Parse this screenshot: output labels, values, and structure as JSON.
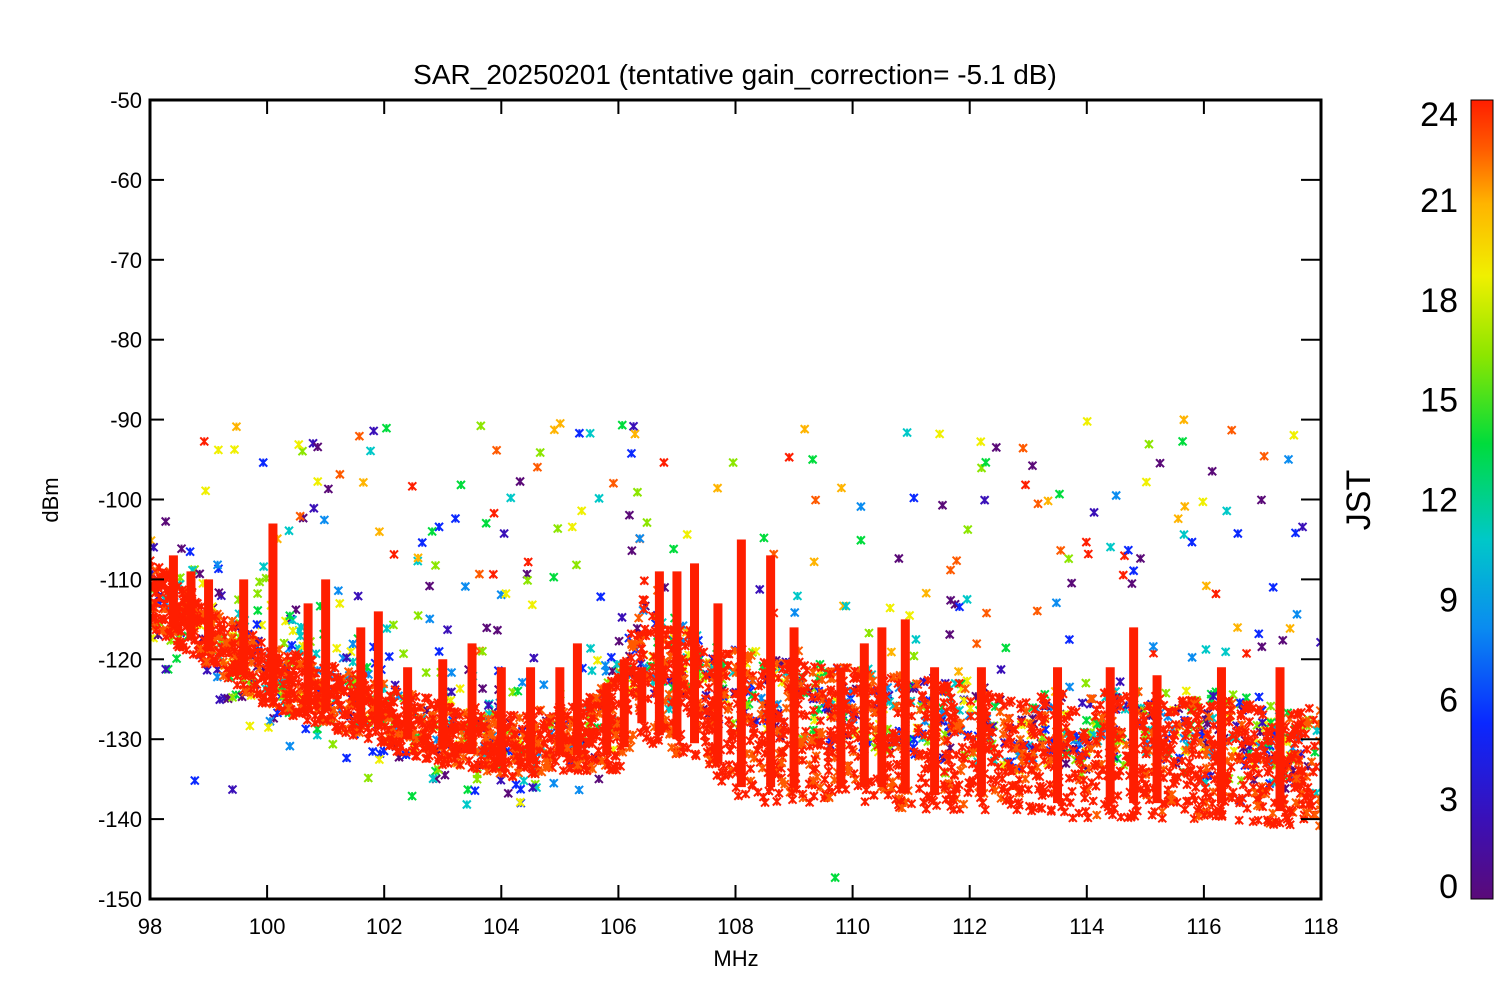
{
  "chart_data": {
    "type": "scatter",
    "title": "SAR_20250201 (tentative gain_correction= -5.1 dB)",
    "xlabel": "MHz",
    "ylabel": "dBm",
    "xlim": [
      98,
      118
    ],
    "ylim": [
      -150,
      -50
    ],
    "x_ticks": [
      "98",
      "100",
      "102",
      "104",
      "106",
      "108",
      "110",
      "112",
      "114",
      "116",
      "118"
    ],
    "y_ticks": [
      "-50",
      "-60",
      "-70",
      "-80",
      "-90",
      "-100",
      "-110",
      "-120",
      "-130",
      "-140",
      "-150"
    ],
    "grid": false,
    "marker": "asterisk",
    "color_scale": {
      "label": "JST",
      "range": [
        0,
        24
      ],
      "ticks": [
        "0",
        "3",
        "6",
        "9",
        "12",
        "15",
        "18",
        "21",
        "24"
      ],
      "colormap": "rainbow",
      "colors": [
        "#5a0a78",
        "#3a10b8",
        "#0a28ff",
        "#0a8cf0",
        "#00c8c8",
        "#00dc3c",
        "#8ce600",
        "#f0f000",
        "#ffb400",
        "#ff5a00",
        "#ff1e00"
      ]
    },
    "series": [
      {
        "description_hour_range": [
          21,
          24
        ],
        "x": [
          98,
          98.4,
          98.8,
          99.2,
          99.6,
          100,
          100.4,
          100.8,
          101.2,
          101.6,
          102,
          102.4,
          102.8,
          103.2,
          103.6,
          104,
          104.4,
          104.8,
          105.2,
          105.6,
          106,
          106.4,
          106.8,
          107.2,
          107.6,
          108,
          108.5,
          109,
          109.5,
          110,
          110.5,
          111,
          111.5,
          112,
          112.5,
          113,
          113.5,
          114,
          114.5,
          115,
          115.5,
          116,
          116.5,
          117,
          117.5,
          118
        ],
        "y_low": [
          -116,
          -118,
          -120,
          -122,
          -124,
          -126,
          -127,
          -128,
          -129,
          -130,
          -131,
          -132,
          -133,
          -133.5,
          -134,
          -134.5,
          -135,
          -134,
          -134,
          -134,
          -134,
          -130,
          -132,
          -132,
          -134,
          -138,
          -138,
          -138,
          -138,
          -138,
          -138,
          -139,
          -139,
          -139,
          -139,
          -139,
          -140,
          -140,
          -140,
          -140,
          -140,
          -140,
          -140,
          -141,
          -141,
          -141
        ],
        "y_high": [
          -107,
          -110,
          -112,
          -114,
          -116,
          -118,
          -119,
          -120,
          -121,
          -122,
          -123,
          -124,
          -125,
          -126,
          -126,
          -127,
          -127,
          -126,
          -126,
          -124,
          -122,
          -112,
          -116,
          -116,
          -120,
          -118,
          -120,
          -120,
          -121,
          -121,
          -122,
          -122,
          -123,
          -123,
          -124,
          -124,
          -124,
          -124,
          -124,
          -124,
          -125,
          -125,
          -125,
          -126,
          -126,
          -126
        ]
      }
    ],
    "spikes": [
      {
        "x": 98.4,
        "y_top": -107
      },
      {
        "x": 98.7,
        "y_top": -109
      },
      {
        "x": 99.0,
        "y_top": -110
      },
      {
        "x": 99.6,
        "y_top": -110
      },
      {
        "x": 100.1,
        "y_top": -103
      },
      {
        "x": 100.7,
        "y_top": -113
      },
      {
        "x": 101.0,
        "y_top": -110
      },
      {
        "x": 101.6,
        "y_top": -116
      },
      {
        "x": 101.9,
        "y_top": -114
      },
      {
        "x": 102.4,
        "y_top": -121
      },
      {
        "x": 103.0,
        "y_top": -120
      },
      {
        "x": 103.5,
        "y_top": -118
      },
      {
        "x": 104.0,
        "y_top": -121
      },
      {
        "x": 104.5,
        "y_top": -121
      },
      {
        "x": 105.0,
        "y_top": -121
      },
      {
        "x": 105.3,
        "y_top": -118
      },
      {
        "x": 105.8,
        "y_top": -123
      },
      {
        "x": 106.1,
        "y_top": -120
      },
      {
        "x": 106.4,
        "y_top": -121
      },
      {
        "x": 106.7,
        "y_top": -109
      },
      {
        "x": 107.0,
        "y_top": -109
      },
      {
        "x": 107.3,
        "y_top": -108
      },
      {
        "x": 107.7,
        "y_top": -113
      },
      {
        "x": 108.1,
        "y_top": -105
      },
      {
        "x": 108.6,
        "y_top": -107
      },
      {
        "x": 109.0,
        "y_top": -116
      },
      {
        "x": 109.8,
        "y_top": -121
      },
      {
        "x": 110.2,
        "y_top": -118
      },
      {
        "x": 110.5,
        "y_top": -116
      },
      {
        "x": 110.9,
        "y_top": -115
      },
      {
        "x": 111.4,
        "y_top": -121
      },
      {
        "x": 112.2,
        "y_top": -121
      },
      {
        "x": 113.5,
        "y_top": -121
      },
      {
        "x": 114.4,
        "y_top": -121
      },
      {
        "x": 114.8,
        "y_top": -116
      },
      {
        "x": 115.2,
        "y_top": -122
      },
      {
        "x": 116.3,
        "y_top": -121
      },
      {
        "x": 117.3,
        "y_top": -121
      }
    ]
  }
}
